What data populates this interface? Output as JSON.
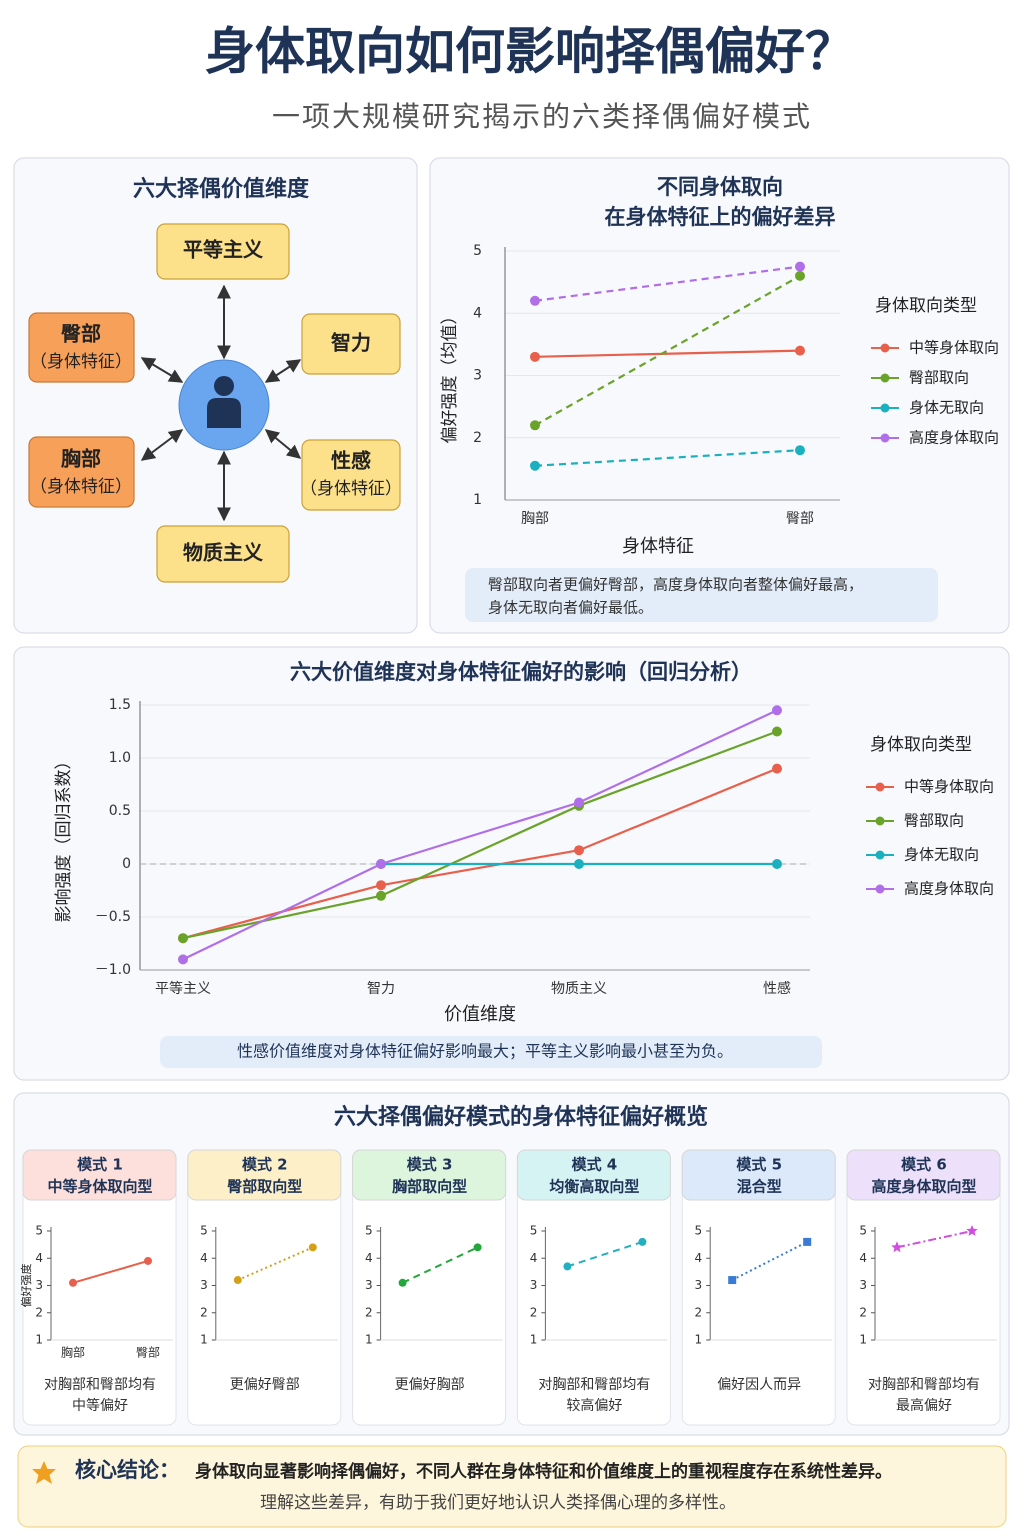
{
  "header": {
    "title": "身体取向如何影响择偶偏好？",
    "subtitle": "一项大规模研究揭示的六类择偶偏好模式"
  },
  "diagram": {
    "title": "六大择偶价值维度",
    "nodes": [
      {
        "label": "平等主义"
      },
      {
        "label": "智力"
      },
      {
        "label": "性感",
        "note": "（身体特征）"
      },
      {
        "label": "物质主义"
      },
      {
        "label": "胸部",
        "note": "（身体特征）"
      },
      {
        "label": "臀部",
        "note": "（身体特征）"
      }
    ]
  },
  "chart_data": [
    {
      "type": "line",
      "title": [
        "不同身体取向",
        "在身体特征上的偏好差异"
      ],
      "x_label": "身体特征",
      "y_label": "偏好强度（均值）",
      "categories": [
        "胸部",
        "臀部"
      ],
      "ylim": [
        1,
        5
      ],
      "yticks": [
        1,
        2,
        3,
        4,
        5
      ],
      "grid": true,
      "legend": "right",
      "legend_title": "身体取向类型",
      "series": [
        {
          "name": "中等身体取向",
          "color": "#e8604c",
          "values": [
            3.3,
            3.4
          ]
        },
        {
          "name": "臀部取向",
          "color": "#6aa329",
          "dash": "dashed",
          "values": [
            2.2,
            4.6
          ]
        },
        {
          "name": "身体无取向",
          "color": "#1ab0c0",
          "dash": "dashed",
          "values": [
            1.55,
            1.8
          ]
        },
        {
          "name": "高度身体取向",
          "color": "#b06ee8",
          "dash": "dashed",
          "values": [
            4.2,
            4.75
          ]
        }
      ],
      "note": [
        "臀部取向者更偏好臀部，高度身体取向者整体偏好最高，",
        "身体无取向者偏好最低。"
      ]
    },
    {
      "type": "line",
      "title": [
        "六大价值维度对身体特征偏好的影响（回归分析）"
      ],
      "x_label": "价值维度",
      "y_label": "影响强度（回归系数）",
      "categories": [
        "平等主义",
        "智力",
        "物质主义",
        "性感"
      ],
      "ylim": [
        -1,
        1.5
      ],
      "yticks": [
        {
          "value": -1,
          "label": "－1.0"
        },
        {
          "value": -0.5,
          "label": "－0.5"
        },
        0,
        0.5,
        {
          "value": 1,
          "label": "1.0"
        },
        1.5
      ],
      "grid": true,
      "zero_line": true,
      "legend": "right",
      "legend_title": "身体取向类型",
      "series": [
        {
          "name": "中等身体取向",
          "color": "#e8604c",
          "values": [
            -0.7,
            -0.2,
            0.13,
            0.9
          ]
        },
        {
          "name": "臀部取向",
          "color": "#6aa329",
          "values": [
            -0.7,
            -0.3,
            0.55,
            1.25
          ]
        },
        {
          "name": "身体无取向",
          "color": "#1ab0c0",
          "values": [
            null,
            0,
            0,
            0
          ]
        },
        {
          "name": "高度身体取向",
          "color": "#b06ee8",
          "values": [
            -0.9,
            0,
            0.58,
            1.45
          ]
        }
      ],
      "note": [
        "性感价值维度对身体特征偏好影响最大；平等主义影响最小甚至为负。"
      ]
    },
    {
      "type": "line",
      "title": [
        "模式 1",
        "中等身体取向型"
      ],
      "header_color": "#fde0dc",
      "y_label": "偏好强度",
      "categories": [
        "胸部",
        "臀部"
      ],
      "ylim": [
        1,
        5
      ],
      "yticks": [
        1,
        2,
        3,
        4,
        5
      ],
      "series": [
        {
          "color": "#e8604c",
          "values": [
            3.1,
            3.9
          ]
        }
      ],
      "note": [
        "对胸部和臀部均有",
        "中等偏好"
      ]
    },
    {
      "type": "line",
      "title": [
        "模式 2",
        "臀部取向型"
      ],
      "header_color": "#fdf0c8",
      "categories": [
        null,
        null
      ],
      "ylim": [
        1,
        5
      ],
      "yticks": [
        1,
        2,
        3,
        4,
        5
      ],
      "series": [
        {
          "color": "#d4a017",
          "dash": "dotted",
          "values": [
            3.2,
            4.4
          ]
        }
      ],
      "note": [
        "更偏好臀部"
      ]
    },
    {
      "type": "line",
      "title": [
        "模式 3",
        "胸部取向型"
      ],
      "header_color": "#dcf5dc",
      "categories": [
        null,
        null
      ],
      "ylim": [
        1,
        5
      ],
      "yticks": [
        1,
        2,
        3,
        4,
        5
      ],
      "series": [
        {
          "color": "#22a83a",
          "dash": "dashed",
          "values": [
            3.1,
            4.4
          ]
        }
      ],
      "note": [
        "更偏好胸部"
      ]
    },
    {
      "type": "line",
      "title": [
        "模式 4",
        "均衡高取向型"
      ],
      "header_color": "#d6f3f3",
      "categories": [
        null,
        null
      ],
      "ylim": [
        1,
        5
      ],
      "yticks": [
        1,
        2,
        3,
        4,
        5
      ],
      "series": [
        {
          "color": "#22b0c0",
          "dash": "dashed",
          "values": [
            3.7,
            4.6
          ]
        }
      ],
      "note": [
        "对胸部和臀部均有",
        "较高偏好"
      ]
    },
    {
      "type": "line",
      "title": [
        "模式 5",
        "混合型"
      ],
      "header_color": "#dce9fa",
      "categories": [
        null,
        null
      ],
      "ylim": [
        1,
        5
      ],
      "yticks": [
        1,
        2,
        3,
        4,
        5
      ],
      "series": [
        {
          "color": "#3a7bd5",
          "dash": "dotted",
          "marker": "square",
          "values": [
            3.2,
            4.6
          ]
        }
      ],
      "note": [
        "偏好因人而异"
      ]
    },
    {
      "type": "line",
      "title": [
        "模式 6",
        "高度身体取向型"
      ],
      "header_color": "#ece0fa",
      "categories": [
        null,
        null
      ],
      "ylim": [
        1,
        5
      ],
      "yticks": [
        1,
        2,
        3,
        4,
        5
      ],
      "series": [
        {
          "color": "#d04ee0",
          "dash": "dashdot",
          "marker": "star",
          "values": [
            4.4,
            5
          ]
        }
      ],
      "note": [
        "对胸部和臀部均有",
        "最高偏好"
      ]
    }
  ],
  "overview_title": "六大择偶偏好模式的身体特征偏好概览",
  "conclusion": {
    "label": "核心结论：",
    "text": "身体取向显著影响择偶偏好，不同人群在身体特征和价值维度上的重视程度存在系统性差异。",
    "text2": "理解这些差异，有助于我们更好地认识人类择偶心理的多样性。"
  }
}
